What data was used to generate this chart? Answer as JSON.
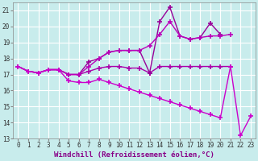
{
  "xlabel": "Windchill (Refroidissement éolien,°C)",
  "bg_color": "#c8ecec",
  "grid_color": "#ffffff",
  "xlim": [
    -0.5,
    23.5
  ],
  "ylim": [
    13,
    21.5
  ],
  "xticks": [
    0,
    1,
    2,
    3,
    4,
    5,
    6,
    7,
    8,
    9,
    10,
    11,
    12,
    13,
    14,
    15,
    16,
    17,
    18,
    19,
    20,
    21,
    22,
    23
  ],
  "yticks": [
    13,
    14,
    15,
    16,
    17,
    18,
    19,
    20,
    21
  ],
  "lines": [
    {
      "x": [
        0,
        1,
        2,
        3,
        4,
        5,
        6,
        7,
        8,
        9,
        10,
        11,
        12,
        13,
        14,
        15,
        16,
        17,
        18,
        19,
        20,
        21
      ],
      "y": [
        17.5,
        17.2,
        17.1,
        17.3,
        17.3,
        17.0,
        17.0,
        17.2,
        17.4,
        17.5,
        17.5,
        17.4,
        17.4,
        17.1,
        17.5,
        17.5,
        17.5,
        17.5,
        17.5,
        17.5,
        17.5,
        17.5
      ]
    },
    {
      "x": [
        0,
        1,
        2,
        3,
        4,
        5,
        6,
        7,
        8,
        9,
        10,
        11,
        12,
        13,
        14,
        15,
        16,
        17,
        18,
        19,
        20
      ],
      "y": [
        17.5,
        17.2,
        17.1,
        17.3,
        17.3,
        17.0,
        17.0,
        17.8,
        18.0,
        18.4,
        18.5,
        18.5,
        18.5,
        17.1,
        20.3,
        21.2,
        19.4,
        19.2,
        19.3,
        20.2,
        19.5
      ]
    },
    {
      "x": [
        0,
        1,
        2,
        3,
        4,
        5,
        6,
        7,
        8,
        9,
        10,
        11,
        12,
        13,
        14,
        15,
        16,
        17,
        18,
        19,
        20,
        21
      ],
      "y": [
        17.5,
        17.2,
        17.1,
        17.3,
        17.3,
        17.0,
        17.0,
        17.5,
        18.0,
        18.4,
        18.5,
        18.5,
        18.5,
        18.8,
        19.5,
        20.3,
        19.4,
        19.2,
        19.3,
        19.4,
        19.4,
        19.5
      ]
    },
    {
      "x": [
        0,
        1,
        2,
        3,
        4,
        5,
        6,
        7,
        8,
        9,
        10,
        11,
        12,
        13,
        14,
        15,
        16,
        17,
        18,
        19,
        20,
        21,
        22,
        23
      ],
      "y": [
        17.5,
        17.2,
        17.1,
        17.3,
        17.3,
        16.6,
        16.5,
        16.5,
        16.7,
        16.5,
        16.3,
        16.1,
        15.9,
        15.7,
        15.5,
        15.3,
        15.1,
        14.9,
        14.7,
        14.5,
        14.3,
        17.5,
        13.2,
        14.4
      ]
    }
  ],
  "line_colors": [
    "#aa00aa",
    "#990099",
    "#bb00bb",
    "#cc00cc"
  ],
  "marker": "+",
  "markersize": 4,
  "markeredgewidth": 1.2,
  "linewidth": 1.0,
  "axis_fontsize": 6.5,
  "tick_fontsize": 5.5
}
